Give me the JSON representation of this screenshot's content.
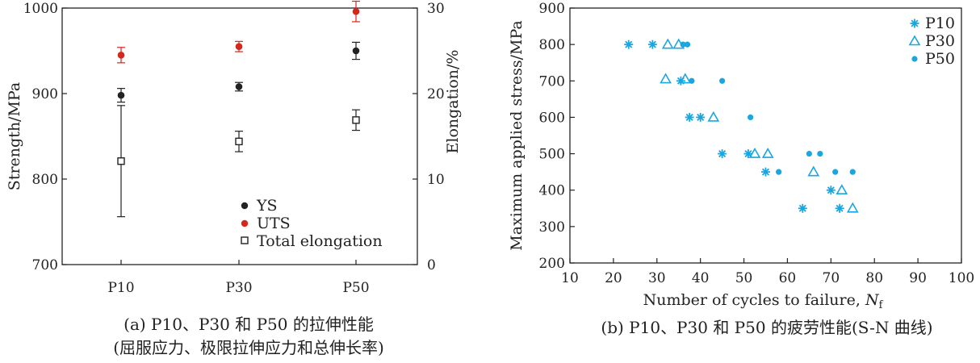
{
  "chart_data": [
    {
      "type": "scatter",
      "caption_line1": "(a) P10、P30 和 P50 的拉伸性能",
      "caption_line2": "(屈服应力、极限拉伸应力和总伸长率)",
      "categories": [
        "P10",
        "P30",
        "P50"
      ],
      "ylabel": "Strength/MPa",
      "y2label": "Elongation/%",
      "ylim": [
        700,
        1000
      ],
      "yticks": [
        "700",
        "800",
        "900",
        "1000"
      ],
      "y2lim": [
        0,
        30
      ],
      "y2ticks": [
        "0",
        "10",
        "20",
        "30"
      ],
      "legend_position": "bottom-right",
      "series": [
        {
          "name": "YS",
          "axis": "left",
          "marker": "filled-circle",
          "color": "#222222",
          "values": [
            898,
            908,
            950
          ],
          "errors": [
            8,
            5,
            10
          ]
        },
        {
          "name": "UTS",
          "axis": "left",
          "marker": "filled-circle",
          "color": "#d6271f",
          "values": [
            945,
            955,
            996
          ],
          "errors": [
            9,
            6,
            12
          ]
        },
        {
          "name": "Total elongation",
          "axis": "right",
          "marker": "open-square",
          "color": "#222222",
          "values": [
            12.1,
            14.4,
            16.9
          ],
          "errors": [
            6.5,
            1.2,
            1.2
          ]
        }
      ]
    },
    {
      "type": "scatter",
      "caption": "(b) P10、P30 和 P50 的疲劳性能(S-N 曲线)",
      "xlabel": "Number of cycles to failure, ",
      "xlabel_symbol": "N",
      "xlabel_sub": "f",
      "ylabel": "Maximum applied stress/MPa",
      "xlim": [
        10,
        100
      ],
      "xticks": [
        "10",
        "20",
        "30",
        "40",
        "50",
        "60",
        "70",
        "80",
        "90",
        "100"
      ],
      "ylim": [
        200,
        900
      ],
      "yticks": [
        "200",
        "300",
        "400",
        "500",
        "600",
        "700",
        "800",
        "900"
      ],
      "color": "#1aa6df",
      "legend_position": "top-right",
      "series": [
        {
          "name": "P10",
          "marker": "asterisk",
          "points": [
            [
              23.5,
              800
            ],
            [
              29,
              800
            ],
            [
              35.5,
              700
            ],
            [
              37.5,
              600
            ],
            [
              40,
              600
            ],
            [
              45,
              500
            ],
            [
              51,
              500
            ],
            [
              55,
              450
            ],
            [
              63.5,
              350
            ],
            [
              70,
              400
            ],
            [
              72,
              350
            ]
          ]
        },
        {
          "name": "P30",
          "marker": "open-triangle",
          "points": [
            [
              32.5,
              800
            ],
            [
              35,
              800
            ],
            [
              32,
              705
            ],
            [
              36.5,
              705
            ],
            [
              43,
              600
            ],
            [
              52.5,
              500
            ],
            [
              55.5,
              500
            ],
            [
              66,
              450
            ],
            [
              72.5,
              400
            ],
            [
              75,
              350
            ]
          ]
        },
        {
          "name": "P50",
          "marker": "filled-circle",
          "points": [
            [
              36,
              800
            ],
            [
              37,
              800
            ],
            [
              38,
              700
            ],
            [
              45,
              700
            ],
            [
              51.5,
              600
            ],
            [
              65,
              500
            ],
            [
              67.5,
              500
            ],
            [
              58,
              450
            ],
            [
              71,
              450
            ],
            [
              75,
              450
            ]
          ]
        }
      ]
    }
  ]
}
